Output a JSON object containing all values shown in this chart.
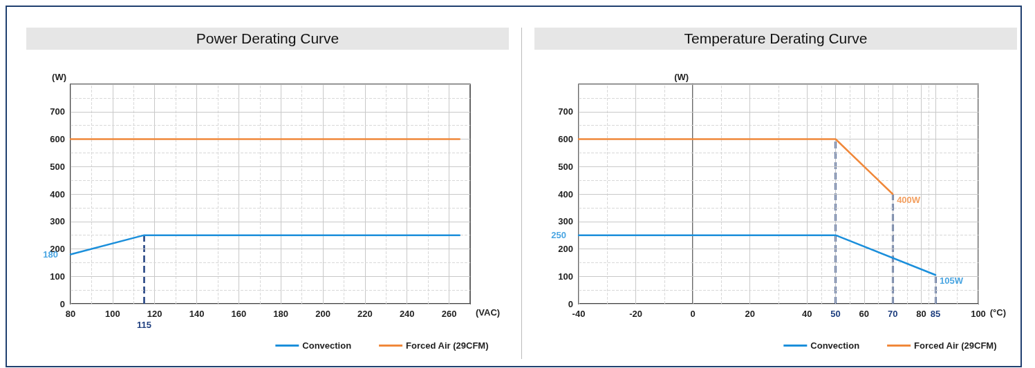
{
  "chart_data": [
    {
      "type": "line",
      "title": "Power Derating Curve",
      "xlabel": "(VAC)",
      "ylabel": "(W)",
      "xlim": [
        80,
        270
      ],
      "xticks": [
        80,
        100,
        120,
        140,
        160,
        180,
        200,
        220,
        240,
        260
      ],
      "ylim": [
        0,
        800
      ],
      "yticks": [
        0,
        100,
        200,
        300,
        400,
        500,
        600,
        700
      ],
      "grid": true,
      "legend": "bottom right",
      "series": [
        {
          "name": "Convection",
          "color": "#1b8fdb",
          "x": [
            80,
            115,
            265
          ],
          "values": [
            180,
            250,
            250
          ]
        },
        {
          "name": "Forced Air (29CFM)",
          "color": "#f0883a",
          "x": [
            80,
            265
          ],
          "values": [
            600,
            600
          ]
        }
      ],
      "ref_lines": [
        {
          "axis": "x",
          "value": 115,
          "label": "115",
          "color": "#1f3f7f",
          "line_style": "dashed"
        }
      ],
      "annotations": [
        {
          "text": "180",
          "x": 80,
          "y": 180
        }
      ]
    },
    {
      "type": "line",
      "title": "Temperature Derating Curve",
      "xlabel": "(°C)",
      "ylabel": "(W)",
      "xlim": [
        -40,
        100
      ],
      "xticks": [
        -40,
        -20,
        0,
        20,
        40,
        50,
        60,
        70,
        80,
        85,
        100
      ],
      "ylim": [
        0,
        800
      ],
      "yticks": [
        0,
        100,
        200,
        300,
        400,
        500,
        600,
        700
      ],
      "grid": true,
      "legend": "bottom right",
      "series": [
        {
          "name": "Convection",
          "color": "#1b8fdb",
          "x": [
            -40,
            50,
            85
          ],
          "values": [
            250,
            250,
            105
          ]
        },
        {
          "name": "Forced Air (29CFM)",
          "color": "#f0883a",
          "x": [
            -40,
            50,
            70
          ],
          "values": [
            600,
            600,
            400
          ]
        }
      ],
      "ref_lines": [
        {
          "axis": "x",
          "value": 50,
          "color": "#1f3f7f",
          "line_style": "dashed"
        },
        {
          "axis": "x",
          "value": 70,
          "color": "#1f3f7f",
          "line_style": "dashed"
        },
        {
          "axis": "x",
          "value": 85,
          "color": "#1f3f7f",
          "line_style": "dashed"
        }
      ],
      "annotations": [
        {
          "text": "250",
          "x": -40,
          "y": 250
        },
        {
          "text": "400W",
          "x": 70,
          "y": 400
        },
        {
          "text": "105W",
          "x": 85,
          "y": 105
        }
      ]
    }
  ]
}
